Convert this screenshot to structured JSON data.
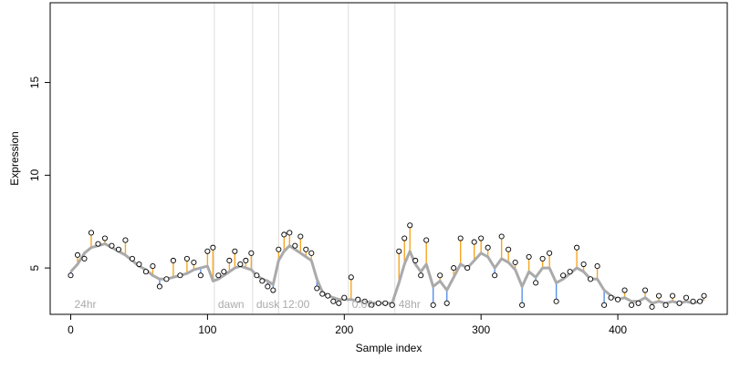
{
  "chart_data": {
    "type": "scatter",
    "title": "",
    "xlabel": "Sample index",
    "ylabel": "Expression",
    "xlim": [
      -15,
      480
    ],
    "ylim": [
      2.5,
      19.3
    ],
    "x_ticks": [
      0,
      100,
      200,
      300,
      400
    ],
    "y_ticks": [
      5,
      10,
      15
    ],
    "grid": "vertical reference lines at phase boundaries",
    "phase_markers": [
      {
        "label": "24hr",
        "x": 0
      },
      {
        "label": "dawn",
        "x": 105
      },
      {
        "label": "dusk",
        "x": 133
      },
      {
        "label": "12:00",
        "x": 152
      },
      {
        "label": "0:00",
        "x": 203
      },
      {
        "label": "48hr",
        "x": 237
      }
    ],
    "colors": {
      "points_stroke": "#000000",
      "points_fill": "#ffffff",
      "fitted_line": "#aaaaaa",
      "residual_positive": "#f5a623",
      "residual_negative": "#5b8fe8",
      "marker_line": "#dddddd",
      "phase_label": "#aaaaaa",
      "axis": "#000000"
    },
    "series": [
      {
        "x": [
          0,
          5,
          10,
          15,
          20,
          25,
          30,
          35,
          40,
          45,
          50,
          55,
          60,
          65,
          70,
          75,
          80,
          85,
          90,
          95,
          100,
          104,
          108,
          112,
          116,
          120,
          124,
          128,
          132,
          136,
          140,
          144,
          148,
          152,
          156,
          160,
          164,
          168,
          172,
          176,
          180,
          184,
          188,
          192,
          196,
          200,
          205,
          210,
          215,
          220,
          225,
          230,
          235,
          240,
          244,
          248,
          252,
          256,
          260,
          265,
          270,
          275,
          280,
          285,
          290,
          295,
          300,
          305,
          310,
          315,
          320,
          325,
          330,
          335,
          340,
          345,
          350,
          355,
          360,
          365,
          370,
          375,
          380,
          385,
          390,
          395,
          400,
          405,
          410,
          415,
          420,
          425,
          430,
          435,
          440,
          445,
          450,
          455,
          460,
          463
        ],
        "observed": [
          4.6,
          5.7,
          5.5,
          6.9,
          6.3,
          6.6,
          6.2,
          6.0,
          6.5,
          5.5,
          5.2,
          4.8,
          5.1,
          4.0,
          4.4,
          5.4,
          4.6,
          5.5,
          5.3,
          4.6,
          5.9,
          6.1,
          4.6,
          4.8,
          5.4,
          5.9,
          5.2,
          5.4,
          5.8,
          4.6,
          4.3,
          4.0,
          3.8,
          6.0,
          6.8,
          6.9,
          6.2,
          6.7,
          6.0,
          5.8,
          3.9,
          3.6,
          3.5,
          3.2,
          3.1,
          3.4,
          4.5,
          3.3,
          3.2,
          3.0,
          3.1,
          3.1,
          3.0,
          5.9,
          6.6,
          7.3,
          5.4,
          4.6,
          6.5,
          3.0,
          4.6,
          3.1,
          5.0,
          6.6,
          5.0,
          6.4,
          6.6,
          6.1,
          4.6,
          6.7,
          6.0,
          5.3,
          3.0,
          5.6,
          4.2,
          5.5,
          5.8,
          3.2,
          4.6,
          4.8,
          6.1,
          5.2,
          4.4,
          5.1,
          3.0,
          3.4,
          3.3,
          3.8,
          3.0,
          3.1,
          3.8,
          2.9,
          3.5,
          3.0,
          3.5,
          3.1,
          3.4,
          3.2,
          3.2,
          3.5
        ],
        "fitted": [
          4.8,
          5.2,
          5.8,
          6.1,
          6.2,
          6.3,
          6.1,
          5.9,
          5.7,
          5.4,
          5.1,
          4.9,
          4.6,
          4.4,
          4.4,
          4.5,
          4.6,
          4.7,
          4.9,
          5.0,
          5.1,
          4.3,
          4.4,
          4.6,
          4.8,
          5.0,
          5.1,
          5.0,
          4.9,
          4.6,
          4.4,
          4.3,
          4.1,
          5.4,
          5.9,
          6.2,
          6.0,
          5.8,
          5.6,
          5.4,
          4.4,
          3.7,
          3.5,
          3.4,
          3.3,
          3.3,
          3.3,
          3.2,
          3.2,
          3.1,
          3.1,
          3.1,
          3.1,
          4.2,
          5.2,
          5.9,
          5.2,
          4.8,
          5.2,
          4.0,
          4.3,
          3.8,
          4.5,
          5.2,
          5.0,
          5.4,
          5.8,
          5.6,
          5.0,
          5.5,
          5.3,
          4.9,
          4.0,
          4.8,
          4.5,
          5.0,
          5.0,
          4.2,
          4.4,
          4.7,
          5.0,
          4.8,
          4.4,
          4.4,
          3.8,
          3.5,
          3.3,
          3.4,
          3.2,
          3.2,
          3.4,
          3.1,
          3.2,
          3.1,
          3.2,
          3.1,
          3.2,
          3.1,
          3.2,
          3.3
        ]
      }
    ]
  }
}
